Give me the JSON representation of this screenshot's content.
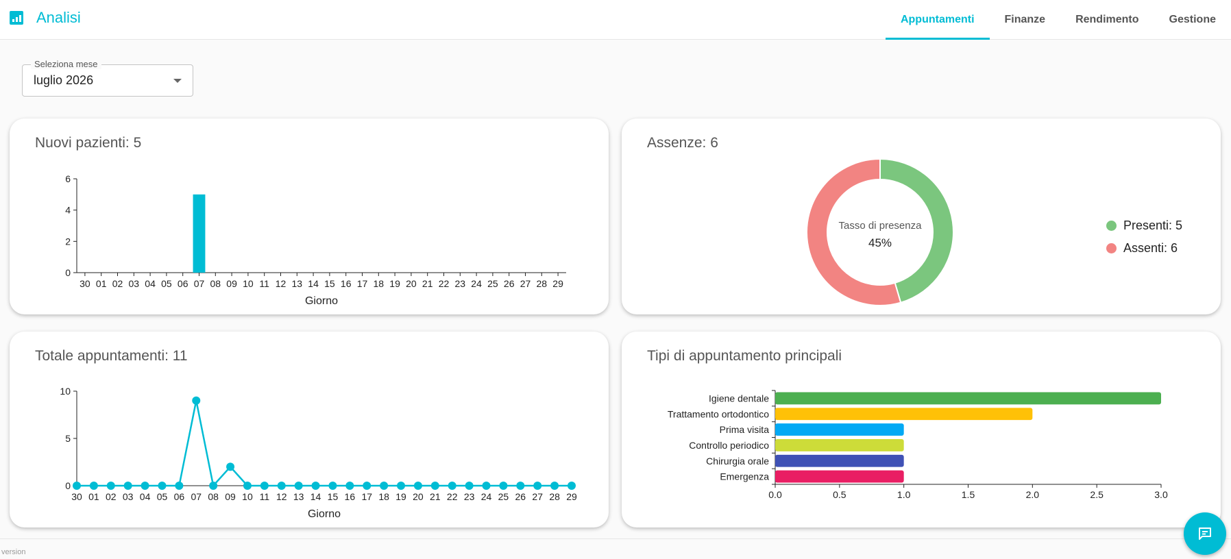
{
  "app": {
    "title": "Analisi",
    "icon": "bar-chart-icon"
  },
  "tabs": [
    {
      "label": "Appuntamenti",
      "active": true
    },
    {
      "label": "Finanze",
      "active": false
    },
    {
      "label": "Rendimento",
      "active": false
    },
    {
      "label": "Gestione",
      "active": false
    }
  ],
  "month_select": {
    "label": "Seleziona mese",
    "value": "luglio 2026"
  },
  "cards": {
    "new_patients": {
      "title": "Nuovi pazienti: 5"
    },
    "absences": {
      "title": "Assenze: 6",
      "center_label": "Tasso di presenza",
      "center_value": "45%",
      "legend": [
        {
          "label": "Presenti: 5",
          "color": "#7bc67e"
        },
        {
          "label": "Assenti: 6",
          "color": "#f28482"
        }
      ]
    },
    "total_appointments": {
      "title": "Totale appuntamenti: 11"
    },
    "top_types": {
      "title": "Tipi di appuntamento principali"
    }
  },
  "colors": {
    "accent": "#00bcd4",
    "present": "#7bc67e",
    "absent": "#f28482"
  },
  "chart_data": [
    {
      "type": "bar",
      "title": "Nuovi pazienti: 5",
      "xlabel": "Giorno",
      "ylabel": "",
      "ylim": [
        0,
        6
      ],
      "yticks": [
        0,
        2,
        4,
        6
      ],
      "categories": [
        "30",
        "01",
        "02",
        "03",
        "04",
        "05",
        "06",
        "07",
        "08",
        "09",
        "10",
        "11",
        "12",
        "13",
        "14",
        "15",
        "16",
        "17",
        "18",
        "19",
        "20",
        "21",
        "22",
        "23",
        "24",
        "25",
        "26",
        "27",
        "28",
        "29"
      ],
      "values": [
        0,
        0,
        0,
        0,
        0,
        0,
        0,
        5,
        0,
        0,
        0,
        0,
        0,
        0,
        0,
        0,
        0,
        0,
        0,
        0,
        0,
        0,
        0,
        0,
        0,
        0,
        0,
        0,
        0,
        0
      ],
      "color": "#00bcd4"
    },
    {
      "type": "pie",
      "title": "Assenze: 6",
      "slices": [
        {
          "label": "Presenti",
          "value": 5,
          "color": "#7bc67e"
        },
        {
          "label": "Assenti",
          "value": 6,
          "color": "#f28482"
        }
      ]
    },
    {
      "type": "line",
      "title": "Totale appuntamenti: 11",
      "xlabel": "Giorno",
      "ylabel": "",
      "ylim": [
        0,
        10
      ],
      "yticks": [
        0,
        5,
        10
      ],
      "categories": [
        "30",
        "01",
        "02",
        "03",
        "04",
        "05",
        "06",
        "07",
        "08",
        "09",
        "10",
        "11",
        "12",
        "13",
        "14",
        "15",
        "16",
        "17",
        "18",
        "19",
        "20",
        "21",
        "22",
        "23",
        "24",
        "25",
        "26",
        "27",
        "28",
        "29"
      ],
      "values": [
        0,
        0,
        0,
        0,
        0,
        0,
        0,
        9,
        0,
        2,
        0,
        0,
        0,
        0,
        0,
        0,
        0,
        0,
        0,
        0,
        0,
        0,
        0,
        0,
        0,
        0,
        0,
        0,
        0,
        0
      ],
      "color": "#00bcd4"
    },
    {
      "type": "bar",
      "orientation": "horizontal",
      "title": "Tipi di appuntamento principali",
      "xlim": [
        0,
        3
      ],
      "xticks": [
        "0.0",
        "0.5",
        "1.0",
        "1.5",
        "2.0",
        "2.5",
        "3.0"
      ],
      "categories": [
        "Igiene dentale",
        "Trattamento ortodontico",
        "Prima visita",
        "Controllo periodico",
        "Chirurgia orale",
        "Emergenza"
      ],
      "values": [
        3,
        2,
        1,
        1,
        1,
        1
      ],
      "colors": [
        "#4caf50",
        "#ffc107",
        "#03a9f4",
        "#cddc39",
        "#3f51b5",
        "#e91e63"
      ]
    }
  ],
  "footer": {
    "version_label": "version"
  },
  "chat_button": {
    "icon": "chat-icon"
  }
}
